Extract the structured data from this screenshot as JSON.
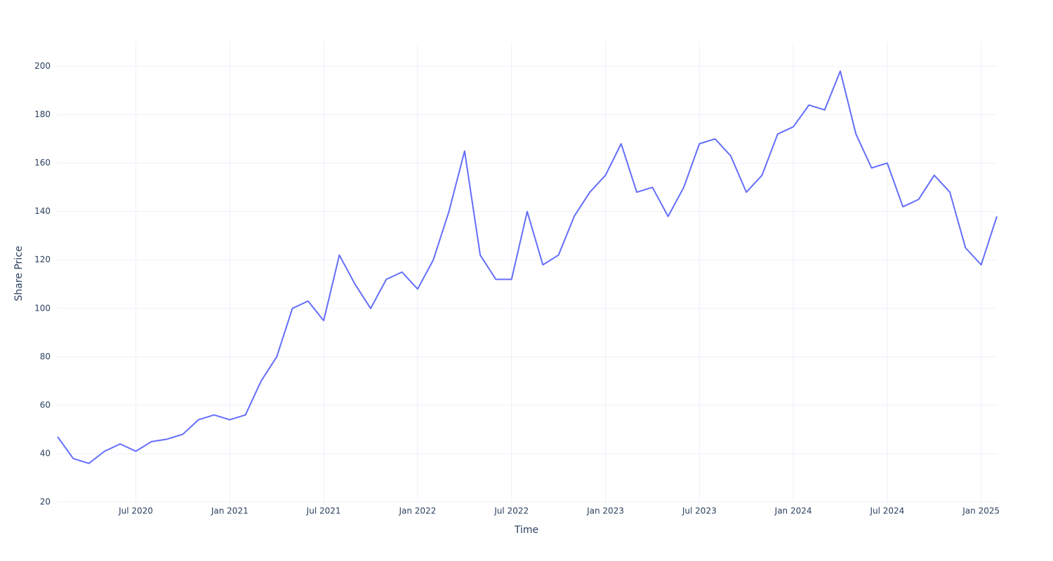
{
  "chart_data": {
    "type": "line",
    "x_title": "Time",
    "y_title": "Share Price",
    "x": [
      "2020-02",
      "2020-03",
      "2020-04",
      "2020-05",
      "2020-06",
      "2020-07",
      "2020-08",
      "2020-09",
      "2020-10",
      "2020-11",
      "2020-12",
      "2021-01",
      "2021-02",
      "2021-03",
      "2021-04",
      "2021-05",
      "2021-06",
      "2021-07",
      "2021-08",
      "2021-09",
      "2021-10",
      "2021-11",
      "2021-12",
      "2022-01",
      "2022-02",
      "2022-03",
      "2022-04",
      "2022-05",
      "2022-06",
      "2022-07",
      "2022-08",
      "2022-09",
      "2022-10",
      "2022-11",
      "2022-12",
      "2023-01",
      "2023-02",
      "2023-03",
      "2023-04",
      "2023-05",
      "2023-06",
      "2023-07",
      "2023-08",
      "2023-09",
      "2023-10",
      "2023-11",
      "2023-12",
      "2024-01",
      "2024-02",
      "2024-03",
      "2024-04",
      "2024-05",
      "2024-06",
      "2024-07",
      "2024-08",
      "2024-09",
      "2024-10",
      "2024-11",
      "2024-12",
      "2025-01",
      "2025-02"
    ],
    "series": [
      {
        "name": "Share Price",
        "color": "#636efa",
        "values": [
          47,
          38,
          36,
          41,
          44,
          41,
          45,
          46,
          48,
          54,
          56,
          54,
          56,
          70,
          80,
          100,
          103,
          95,
          122,
          110,
          100,
          112,
          115,
          108,
          120,
          140,
          165,
          122,
          112,
          112,
          140,
          118,
          122,
          138,
          148,
          155,
          168,
          148,
          150,
          138,
          150,
          168,
          170,
          163,
          148,
          155,
          172,
          175,
          184,
          182,
          198,
          172,
          158,
          160,
          142,
          145,
          155,
          148,
          125,
          118,
          138
        ]
      }
    ],
    "xlim": [
      "2020-02",
      "2025-02"
    ],
    "xticks": [
      {
        "value": "2020-07",
        "label": "Jul 2020"
      },
      {
        "value": "2021-01",
        "label": "Jan 2021"
      },
      {
        "value": "2021-07",
        "label": "Jul 2021"
      },
      {
        "value": "2022-01",
        "label": "Jan 2022"
      },
      {
        "value": "2022-07",
        "label": "Jul 2022"
      },
      {
        "value": "2023-01",
        "label": "Jan 2023"
      },
      {
        "value": "2023-07",
        "label": "Jul 2023"
      },
      {
        "value": "2024-01",
        "label": "Jan 2024"
      },
      {
        "value": "2024-07",
        "label": "Jul 2024"
      },
      {
        "value": "2025-01",
        "label": "Jan 2025"
      }
    ],
    "ylim": [
      20,
      210
    ],
    "yticks": [
      20,
      40,
      60,
      80,
      100,
      120,
      140,
      160,
      180,
      200
    ],
    "grid": true
  }
}
